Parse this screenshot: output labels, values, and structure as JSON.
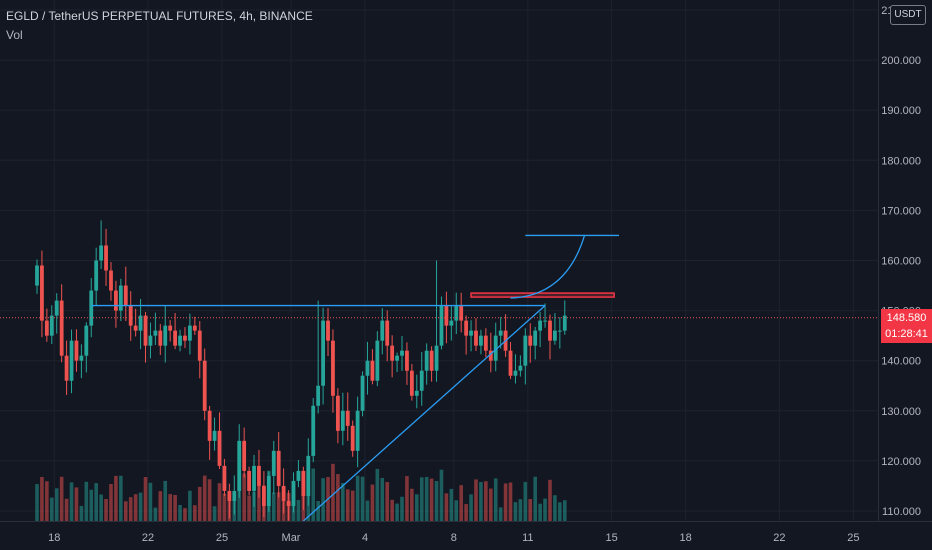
{
  "header": {
    "symbol": "EGLD / TetherUS PERPETUAL FUTURES, 4h, BINANCE",
    "volume_label": "Vol"
  },
  "currency": "USDT",
  "current": {
    "price": "148.580",
    "countdown": "01:28:41"
  },
  "colors": {
    "background": "#131722",
    "up": "#26a69a",
    "down": "#ef5350",
    "drawing": "#2a9df4",
    "marker": "#f23645",
    "grid": "#1e222d",
    "axis_text": "#b2b5be"
  },
  "chart_data": {
    "type": "candlestick",
    "y_axis": {
      "range": [
        108,
        212
      ],
      "ticks": [
        "110.000",
        "120.000",
        "130.000",
        "140.000",
        "150.000",
        "160.000",
        "170.000",
        "180.000",
        "190.000",
        "200.000",
        "210.000"
      ]
    },
    "x_axis": {
      "ticks": [
        "18",
        "22",
        "25",
        "Mar",
        "4",
        "8",
        "11",
        "15",
        "18",
        "22",
        "25"
      ],
      "tick_positions": [
        3.5,
        22.5,
        37.5,
        51.5,
        66.5,
        84.5,
        99.5,
        116.5,
        131.5,
        150.5,
        165.5
      ],
      "range": [
        -7.5,
        170.5
      ]
    },
    "closes": [
      159,
      148,
      145,
      149,
      152,
      141,
      136,
      144,
      140,
      141,
      147,
      154,
      160,
      163,
      158,
      154,
      150,
      155,
      151,
      147,
      146,
      149,
      143,
      145,
      146,
      143,
      147,
      146,
      143,
      145,
      144,
      147,
      146,
      140,
      130,
      124,
      126,
      119,
      114,
      112,
      114,
      124,
      118,
      114,
      119,
      115,
      111,
      117,
      122,
      115,
      112,
      111,
      116,
      118,
      113,
      121,
      131,
      135,
      148,
      144,
      133,
      126,
      130,
      127,
      122,
      130,
      137,
      140,
      136,
      144,
      148,
      143,
      140,
      141,
      142,
      138,
      133,
      134,
      138,
      142,
      138,
      143,
      151,
      147,
      148,
      151,
      148,
      145,
      146,
      143,
      145,
      142,
      140,
      145,
      146,
      142,
      137,
      138,
      139,
      145,
      143,
      146,
      148,
      148,
      144,
      146,
      146,
      149
    ],
    "volume": {
      "note": "volume bars drawn along the bottom of the chart, coloured by candle direction"
    },
    "drawings": [
      {
        "type": "horizontal-line",
        "label": "resistance",
        "price": 151,
        "x": [
          11,
          103
        ]
      },
      {
        "type": "trend-line",
        "label": "rising support",
        "from": {
          "x": 54,
          "y": 108
        },
        "to": {
          "x": 103,
          "y": 151
        }
      },
      {
        "type": "rectangle",
        "label": "target zone",
        "price": [
          152.7,
          153.5
        ],
        "x": [
          88,
          117
        ]
      },
      {
        "type": "projection-curve",
        "label": "breakout projection",
        "from": {
          "x": 96,
          "y": 152.5
        },
        "to": {
          "x": 111,
          "y": 165
        }
      },
      {
        "type": "horizontal-line",
        "label": "target",
        "price": 165,
        "x": [
          99,
          118
        ]
      }
    ]
  }
}
